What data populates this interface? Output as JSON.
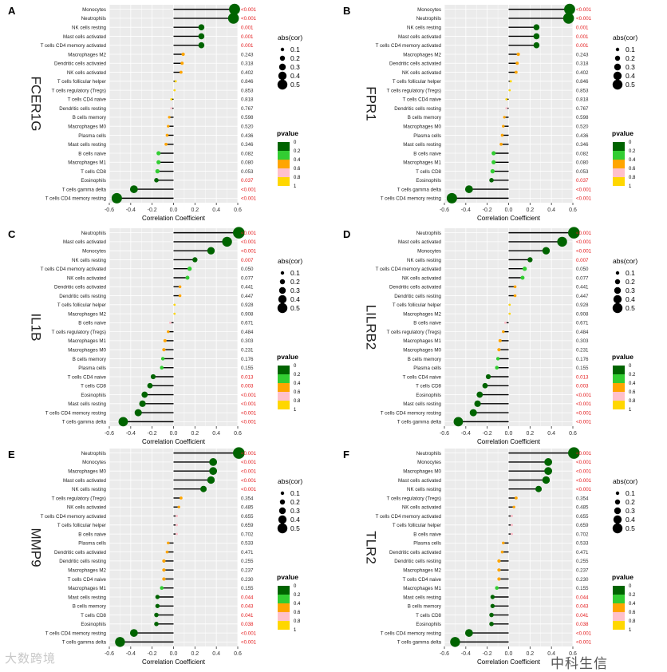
{
  "watermarks": {
    "left": "大数跨境",
    "right": "中科生信"
  },
  "legend_labels": {
    "size_title": "abs(cor)",
    "size_ticks": [
      "0.1",
      "0.2",
      "0.3",
      "0.4",
      "0.5"
    ],
    "pvalue_title": "pvalue",
    "pvalue_ticks": [
      "0",
      "0.2",
      "0.4",
      "0.6",
      "0.8",
      "1"
    ]
  },
  "colors": {
    "panel_bg": "#ebebeb",
    "grid": "#ffffff",
    "significant_text": "#e41a1c",
    "normal_text": "#333333",
    "pvalue_scale": [
      "#006400",
      "#32cd32",
      "#ffa500",
      "#ffc0cb",
      "#ffd700"
    ]
  },
  "chart_data": [
    {
      "panel": "A",
      "gene": "FCER1G",
      "type": "lollipop",
      "xlabel": "Correlation Coefficient",
      "xlim": [
        -0.6,
        0.6
      ],
      "xticks": [
        "-0.6",
        "-0.4",
        "-0.2",
        "0.0",
        "0.2",
        "0.4",
        "0.6"
      ],
      "rows": [
        {
          "cell": "Monocytes",
          "cor": 0.57,
          "p": "<0.001",
          "pv": 0
        },
        {
          "cell": "Neutrophils",
          "cor": 0.56,
          "p": "<0.001",
          "pv": 0
        },
        {
          "cell": "NK cells resting",
          "cor": 0.26,
          "p": "0.001",
          "pv": 0.001
        },
        {
          "cell": "Mast cells activated",
          "cor": 0.26,
          "p": "0.001",
          "pv": 0.001
        },
        {
          "cell": "T cells CD4 memory activated",
          "cor": 0.26,
          "p": "0.001",
          "pv": 0.001
        },
        {
          "cell": "Macrophages M2",
          "cor": 0.09,
          "p": "0.243",
          "pv": 0.243
        },
        {
          "cell": "Dendritic cells activated",
          "cor": 0.08,
          "p": "0.318",
          "pv": 0.318
        },
        {
          "cell": "NK cells activated",
          "cor": 0.07,
          "p": "0.402",
          "pv": 0.402
        },
        {
          "cell": "T cells follicular helper",
          "cor": 0.02,
          "p": "0.846",
          "pv": 0.846
        },
        {
          "cell": "T cells regulatory (Tregs)",
          "cor": 0.01,
          "p": "0.853",
          "pv": 0.853
        },
        {
          "cell": "T cells CD4 naive",
          "cor": -0.02,
          "p": "0.818",
          "pv": 0.818
        },
        {
          "cell": "Dendritic cells resting",
          "cor": -0.02,
          "p": "0.767",
          "pv": 0.767
        },
        {
          "cell": "B cells memory",
          "cor": -0.04,
          "p": "0.598",
          "pv": 0.598
        },
        {
          "cell": "Macrophages M0",
          "cor": -0.05,
          "p": "0.520",
          "pv": 0.52
        },
        {
          "cell": "Plasma cells",
          "cor": -0.06,
          "p": "0.436",
          "pv": 0.436
        },
        {
          "cell": "Mast cells resting",
          "cor": -0.07,
          "p": "0.346",
          "pv": 0.346
        },
        {
          "cell": "B cells naive",
          "cor": -0.14,
          "p": "0.082",
          "pv": 0.082
        },
        {
          "cell": "Macrophages M1",
          "cor": -0.14,
          "p": "0.080",
          "pv": 0.08
        },
        {
          "cell": "T cells CD8",
          "cor": -0.15,
          "p": "0.053",
          "pv": 0.053
        },
        {
          "cell": "Eosinophils",
          "cor": -0.16,
          "p": "0.037",
          "pv": 0.037
        },
        {
          "cell": "T cells gamma delta",
          "cor": -0.37,
          "p": "<0.001",
          "pv": 0
        },
        {
          "cell": "T cells CD4 memory resting",
          "cor": -0.53,
          "p": "<0.001",
          "pv": 0
        }
      ]
    },
    {
      "panel": "B",
      "gene": "FPR1",
      "type": "lollipop",
      "xlabel": "Correlation Coefficient",
      "xlim": [
        -0.6,
        0.6
      ],
      "xticks": [
        "-0.6",
        "-0.4",
        "-0.2",
        "0.0",
        "0.2",
        "0.4",
        "0.6"
      ],
      "rows": [
        {
          "cell": "Monocytes",
          "cor": 0.57,
          "p": "<0.001",
          "pv": 0
        },
        {
          "cell": "Neutrophils",
          "cor": 0.56,
          "p": "<0.001",
          "pv": 0
        },
        {
          "cell": "NK cells resting",
          "cor": 0.26,
          "p": "0.001",
          "pv": 0.001
        },
        {
          "cell": "Mast cells activated",
          "cor": 0.26,
          "p": "0.001",
          "pv": 0.001
        },
        {
          "cell": "T cells CD4 memory activated",
          "cor": 0.26,
          "p": "0.001",
          "pv": 0.001
        },
        {
          "cell": "Macrophages M2",
          "cor": 0.09,
          "p": "0.243",
          "pv": 0.243
        },
        {
          "cell": "Dendritic cells activated",
          "cor": 0.08,
          "p": "0.318",
          "pv": 0.318
        },
        {
          "cell": "NK cells activated",
          "cor": 0.07,
          "p": "0.402",
          "pv": 0.402
        },
        {
          "cell": "T cells follicular helper",
          "cor": 0.02,
          "p": "0.846",
          "pv": 0.846
        },
        {
          "cell": "T cells regulatory (Tregs)",
          "cor": 0.01,
          "p": "0.853",
          "pv": 0.853
        },
        {
          "cell": "T cells CD4 naive",
          "cor": -0.02,
          "p": "0.818",
          "pv": 0.818
        },
        {
          "cell": "Dendritic cells resting",
          "cor": -0.02,
          "p": "0.767",
          "pv": 0.767
        },
        {
          "cell": "B cells memory",
          "cor": -0.04,
          "p": "0.598",
          "pv": 0.598
        },
        {
          "cell": "Macrophages M0",
          "cor": -0.05,
          "p": "0.520",
          "pv": 0.52
        },
        {
          "cell": "Plasma cells",
          "cor": -0.06,
          "p": "0.436",
          "pv": 0.436
        },
        {
          "cell": "Mast cells resting",
          "cor": -0.07,
          "p": "0.346",
          "pv": 0.346
        },
        {
          "cell": "B cells naive",
          "cor": -0.14,
          "p": "0.082",
          "pv": 0.082
        },
        {
          "cell": "Macrophages M1",
          "cor": -0.14,
          "p": "0.080",
          "pv": 0.08
        },
        {
          "cell": "T cells CD8",
          "cor": -0.15,
          "p": "0.053",
          "pv": 0.053
        },
        {
          "cell": "Eosinophils",
          "cor": -0.16,
          "p": "0.037",
          "pv": 0.037
        },
        {
          "cell": "T cells gamma delta",
          "cor": -0.37,
          "p": "<0.001",
          "pv": 0
        },
        {
          "cell": "T cells CD4 memory resting",
          "cor": -0.53,
          "p": "<0.001",
          "pv": 0
        }
      ]
    },
    {
      "panel": "C",
      "gene": "IL1B",
      "type": "lollipop",
      "xlabel": "Correlation Coefficient",
      "xlim": [
        -0.6,
        0.6
      ],
      "xticks": [
        "-0.6",
        "-0.4",
        "-0.2",
        "0.0",
        "0.2",
        "0.4",
        "0.6"
      ],
      "rows": [
        {
          "cell": "Neutrophils",
          "cor": 0.61,
          "p": "<0.001",
          "pv": 0
        },
        {
          "cell": "Mast cells activated",
          "cor": 0.5,
          "p": "<0.001",
          "pv": 0
        },
        {
          "cell": "Monocytes",
          "cor": 0.35,
          "p": "<0.001",
          "pv": 0
        },
        {
          "cell": "NK cells resting",
          "cor": 0.2,
          "p": "0.007",
          "pv": 0.007
        },
        {
          "cell": "T cells CD4 memory activated",
          "cor": 0.15,
          "p": "0.050",
          "pv": 0.05
        },
        {
          "cell": "NK cells activated",
          "cor": 0.13,
          "p": "0.077",
          "pv": 0.077
        },
        {
          "cell": "Dendritic cells activated",
          "cor": 0.06,
          "p": "0.441",
          "pv": 0.441
        },
        {
          "cell": "Dendritic cells resting",
          "cor": 0.06,
          "p": "0.447",
          "pv": 0.447
        },
        {
          "cell": "T cells follicular helper",
          "cor": 0.01,
          "p": "0.928",
          "pv": 0.928
        },
        {
          "cell": "Macrophages M2",
          "cor": 0.01,
          "p": "0.908",
          "pv": 0.908
        },
        {
          "cell": "B cells naive",
          "cor": -0.03,
          "p": "0.671",
          "pv": 0.671
        },
        {
          "cell": "T cells regulatory (Tregs)",
          "cor": -0.05,
          "p": "0.484",
          "pv": 0.484
        },
        {
          "cell": "Macrophages M1",
          "cor": -0.08,
          "p": "0.303",
          "pv": 0.303
        },
        {
          "cell": "Macrophages M0",
          "cor": -0.09,
          "p": "0.231",
          "pv": 0.231
        },
        {
          "cell": "B cells memory",
          "cor": -0.1,
          "p": "0.176",
          "pv": 0.176
        },
        {
          "cell": "Plasma cells",
          "cor": -0.11,
          "p": "0.155",
          "pv": 0.155
        },
        {
          "cell": "T cells CD4 naive",
          "cor": -0.19,
          "p": "0.013",
          "pv": 0.013
        },
        {
          "cell": "T cells CD8",
          "cor": -0.22,
          "p": "0.003",
          "pv": 0.003
        },
        {
          "cell": "Eosinophils",
          "cor": -0.27,
          "p": "<0.001",
          "pv": 0
        },
        {
          "cell": "Mast cells resting",
          "cor": -0.29,
          "p": "<0.001",
          "pv": 0
        },
        {
          "cell": "T cells CD4 memory resting",
          "cor": -0.33,
          "p": "<0.001",
          "pv": 0
        },
        {
          "cell": "T cells gamma delta",
          "cor": -0.47,
          "p": "<0.001",
          "pv": 0
        }
      ]
    },
    {
      "panel": "D",
      "gene": "LILRB2",
      "type": "lollipop",
      "xlabel": "Correlation Coefficient",
      "xlim": [
        -0.6,
        0.6
      ],
      "xticks": [
        "-0.6",
        "-0.4",
        "-0.2",
        "0.0",
        "0.2",
        "0.4",
        "0.6"
      ],
      "rows": [
        {
          "cell": "Neutrophils",
          "cor": 0.61,
          "p": "<0.001",
          "pv": 0
        },
        {
          "cell": "Mast cells activated",
          "cor": 0.5,
          "p": "<0.001",
          "pv": 0
        },
        {
          "cell": "Monocytes",
          "cor": 0.35,
          "p": "<0.001",
          "pv": 0
        },
        {
          "cell": "NK cells resting",
          "cor": 0.2,
          "p": "0.007",
          "pv": 0.007
        },
        {
          "cell": "T cells CD4 memory activated",
          "cor": 0.15,
          "p": "0.050",
          "pv": 0.05
        },
        {
          "cell": "NK cells activated",
          "cor": 0.13,
          "p": "0.077",
          "pv": 0.077
        },
        {
          "cell": "Dendritic cells activated",
          "cor": 0.06,
          "p": "0.441",
          "pv": 0.441
        },
        {
          "cell": "Dendritic cells resting",
          "cor": 0.06,
          "p": "0.447",
          "pv": 0.447
        },
        {
          "cell": "T cells follicular helper",
          "cor": 0.01,
          "p": "0.928",
          "pv": 0.928
        },
        {
          "cell": "Macrophages M2",
          "cor": 0.01,
          "p": "0.908",
          "pv": 0.908
        },
        {
          "cell": "B cells naive",
          "cor": -0.03,
          "p": "0.671",
          "pv": 0.671
        },
        {
          "cell": "T cells regulatory (Tregs)",
          "cor": -0.05,
          "p": "0.484",
          "pv": 0.484
        },
        {
          "cell": "Macrophages M1",
          "cor": -0.08,
          "p": "0.303",
          "pv": 0.303
        },
        {
          "cell": "Macrophages M0",
          "cor": -0.09,
          "p": "0.231",
          "pv": 0.231
        },
        {
          "cell": "B cells memory",
          "cor": -0.1,
          "p": "0.176",
          "pv": 0.176
        },
        {
          "cell": "Plasma cells",
          "cor": -0.11,
          "p": "0.155",
          "pv": 0.155
        },
        {
          "cell": "T cells CD4 naive",
          "cor": -0.19,
          "p": "0.013",
          "pv": 0.013
        },
        {
          "cell": "T cells CD8",
          "cor": -0.22,
          "p": "0.003",
          "pv": 0.003
        },
        {
          "cell": "Eosinophils",
          "cor": -0.27,
          "p": "<0.001",
          "pv": 0
        },
        {
          "cell": "Mast cells resting",
          "cor": -0.29,
          "p": "<0.001",
          "pv": 0
        },
        {
          "cell": "T cells CD4 memory resting",
          "cor": -0.33,
          "p": "<0.001",
          "pv": 0
        },
        {
          "cell": "T cells gamma delta",
          "cor": -0.47,
          "p": "<0.001",
          "pv": 0
        }
      ]
    },
    {
      "panel": "E",
      "gene": "MMP9",
      "type": "lollipop",
      "xlabel": "Correlation Coefficient",
      "xlim": [
        -0.6,
        0.6
      ],
      "xticks": [
        "-0.6",
        "-0.4",
        "-0.2",
        "0.0",
        "0.2",
        "0.4",
        "0.6"
      ],
      "rows": [
        {
          "cell": "Neutrophils",
          "cor": 0.61,
          "p": "<0.001",
          "pv": 0
        },
        {
          "cell": "Monocytes",
          "cor": 0.37,
          "p": "<0.001",
          "pv": 0
        },
        {
          "cell": "Macrophages M0",
          "cor": 0.37,
          "p": "<0.001",
          "pv": 0
        },
        {
          "cell": "Mast cells activated",
          "cor": 0.35,
          "p": "<0.001",
          "pv": 0
        },
        {
          "cell": "NK cells resting",
          "cor": 0.28,
          "p": "<0.001",
          "pv": 0
        },
        {
          "cell": "T cells regulatory (Tregs)",
          "cor": 0.07,
          "p": "0.354",
          "pv": 0.354
        },
        {
          "cell": "NK cells activated",
          "cor": 0.05,
          "p": "0.485",
          "pv": 0.485
        },
        {
          "cell": "T cells CD4 memory activated",
          "cor": 0.03,
          "p": "0.655",
          "pv": 0.655
        },
        {
          "cell": "T cells follicular helper",
          "cor": 0.03,
          "p": "0.659",
          "pv": 0.659
        },
        {
          "cell": "B cells naive",
          "cor": 0.03,
          "p": "0.702",
          "pv": 0.702
        },
        {
          "cell": "Plasma cells",
          "cor": -0.05,
          "p": "0.533",
          "pv": 0.533
        },
        {
          "cell": "Dendritic cells activated",
          "cor": -0.06,
          "p": "0.471",
          "pv": 0.471
        },
        {
          "cell": "Dendritic cells resting",
          "cor": -0.09,
          "p": "0.255",
          "pv": 0.255
        },
        {
          "cell": "Macrophages M2",
          "cor": -0.09,
          "p": "0.237",
          "pv": 0.237
        },
        {
          "cell": "T cells CD4 naive",
          "cor": -0.09,
          "p": "0.230",
          "pv": 0.23
        },
        {
          "cell": "Macrophages M1",
          "cor": -0.11,
          "p": "0.155",
          "pv": 0.155
        },
        {
          "cell": "Mast cells resting",
          "cor": -0.15,
          "p": "0.044",
          "pv": 0.044
        },
        {
          "cell": "B cells memory",
          "cor": -0.15,
          "p": "0.043",
          "pv": 0.043
        },
        {
          "cell": "T cells CD8",
          "cor": -0.16,
          "p": "0.041",
          "pv": 0.041
        },
        {
          "cell": "Eosinophils",
          "cor": -0.16,
          "p": "0.038",
          "pv": 0.038
        },
        {
          "cell": "T cells CD4 memory resting",
          "cor": -0.37,
          "p": "<0.001",
          "pv": 0
        },
        {
          "cell": "T cells gamma delta",
          "cor": -0.5,
          "p": "<0.001",
          "pv": 0
        }
      ]
    },
    {
      "panel": "F",
      "gene": "TLR2",
      "type": "lollipop",
      "xlabel": "Correlation Coefficient",
      "xlim": [
        -0.6,
        0.6
      ],
      "xticks": [
        "-0.6",
        "-0.4",
        "-0.2",
        "0.0",
        "0.2",
        "0.4",
        "0.6"
      ],
      "rows": [
        {
          "cell": "Neutrophils",
          "cor": 0.61,
          "p": "<0.001",
          "pv": 0
        },
        {
          "cell": "Monocytes",
          "cor": 0.37,
          "p": "<0.001",
          "pv": 0
        },
        {
          "cell": "Macrophages M0",
          "cor": 0.37,
          "p": "<0.001",
          "pv": 0
        },
        {
          "cell": "Mast cells activated",
          "cor": 0.35,
          "p": "<0.001",
          "pv": 0
        },
        {
          "cell": "NK cells resting",
          "cor": 0.28,
          "p": "<0.001",
          "pv": 0
        },
        {
          "cell": "T cells regulatory (Tregs)",
          "cor": 0.07,
          "p": "0.354",
          "pv": 0.354
        },
        {
          "cell": "NK cells activated",
          "cor": 0.05,
          "p": "0.485",
          "pv": 0.485
        },
        {
          "cell": "T cells CD4 memory activated",
          "cor": 0.03,
          "p": "0.655",
          "pv": 0.655
        },
        {
          "cell": "T cells follicular helper",
          "cor": 0.03,
          "p": "0.659",
          "pv": 0.659
        },
        {
          "cell": "B cells naive",
          "cor": 0.03,
          "p": "0.702",
          "pv": 0.702
        },
        {
          "cell": "Plasma cells",
          "cor": -0.05,
          "p": "0.533",
          "pv": 0.533
        },
        {
          "cell": "Dendritic cells activated",
          "cor": -0.06,
          "p": "0.471",
          "pv": 0.471
        },
        {
          "cell": "Dendritic cells resting",
          "cor": -0.09,
          "p": "0.255",
          "pv": 0.255
        },
        {
          "cell": "Macrophages M2",
          "cor": -0.09,
          "p": "0.237",
          "pv": 0.237
        },
        {
          "cell": "T cells CD4 naive",
          "cor": -0.09,
          "p": "0.230",
          "pv": 0.23
        },
        {
          "cell": "Macrophages M1",
          "cor": -0.11,
          "p": "0.155",
          "pv": 0.155
        },
        {
          "cell": "Mast cells resting",
          "cor": -0.15,
          "p": "0.044",
          "pv": 0.044
        },
        {
          "cell": "B cells memory",
          "cor": -0.15,
          "p": "0.043",
          "pv": 0.043
        },
        {
          "cell": "T cells CD8",
          "cor": -0.16,
          "p": "0.041",
          "pv": 0.041
        },
        {
          "cell": "Eosinophils",
          "cor": -0.16,
          "p": "0.038",
          "pv": 0.038
        },
        {
          "cell": "T cells CD4 memory resting",
          "cor": -0.37,
          "p": "<0.001",
          "pv": 0
        },
        {
          "cell": "T cells gamma delta",
          "cor": -0.5,
          "p": "<0.001",
          "pv": 0
        }
      ]
    }
  ]
}
